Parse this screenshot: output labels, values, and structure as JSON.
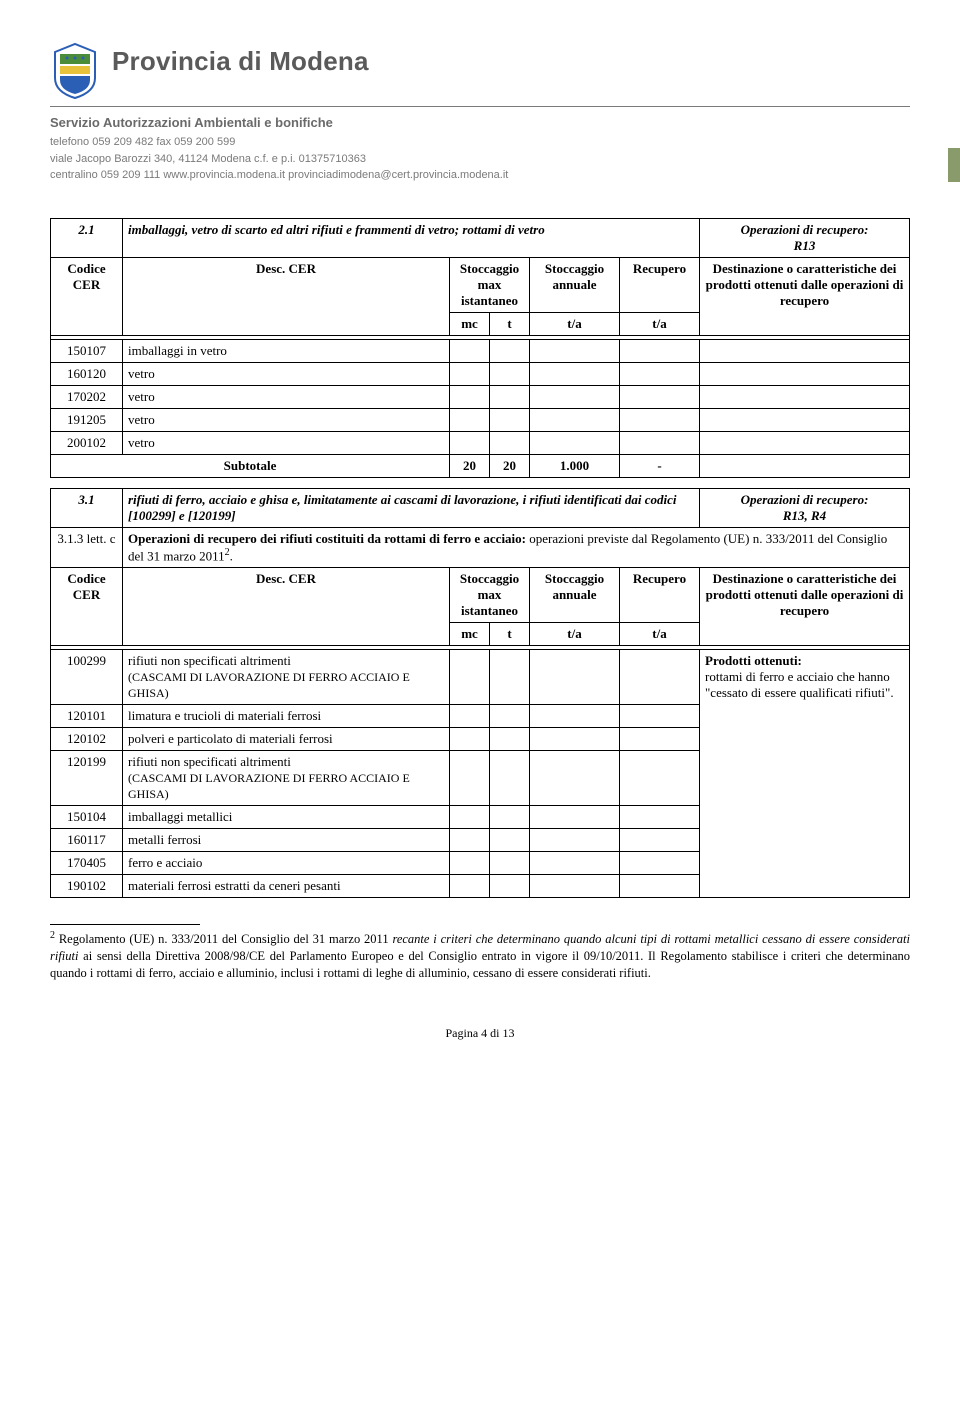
{
  "header": {
    "org_title": "Provincia di Modena",
    "service": "Servizio Autorizzazioni Ambientali e bonifiche",
    "contact_line1": "telefono 059 209 482   fax 059 200 599",
    "contact_line2": "viale Jacopo Barozzi 340, 41124 Modena  c.f. e p.i. 01375710363",
    "contact_line3": "centralino 059 209 111   www.provincia.modena.it   provinciadimodena@cert.provincia.modena.it"
  },
  "colors": {
    "header_text": "#5a5a5a",
    "header_sub": "#6a6a6a",
    "side_tab": "#8a9b6b",
    "logo_green": "#4a8c3a",
    "logo_blue": "#2b5fb5",
    "logo_yellow": "#e8c23a"
  },
  "section21": {
    "num": "2.1",
    "title": "imballaggi, vetro di scarto ed altri rifiuti e frammenti di vetro; rottami di vetro",
    "op_label": "Operazioni di recupero:",
    "op_value": "R13",
    "col_codice": "Codice CER",
    "col_desc": "Desc. CER",
    "col_stocc_max": "Stoccaggio max istantaneo",
    "col_mc": "mc",
    "col_t": "t",
    "col_stocc_ann": "Stoccaggio annuale",
    "col_ta": "t/a",
    "col_recupero": "Recupero",
    "col_ta2": "t/a",
    "col_dest": "Destinazione o caratteristiche dei prodotti ottenuti dalle operazioni di recupero",
    "rows": [
      {
        "code": "150107",
        "desc": "imballaggi in vetro"
      },
      {
        "code": "160120",
        "desc": "vetro"
      },
      {
        "code": "170202",
        "desc": "vetro"
      },
      {
        "code": "191205",
        "desc": "vetro"
      },
      {
        "code": "200102",
        "desc": "vetro"
      }
    ],
    "subtotal_label": "Subtotale",
    "subtotal_mc": "20",
    "subtotal_t": "20",
    "subtotal_ann": "1.000",
    "subtotal_rec": "-"
  },
  "section31": {
    "num": "3.1",
    "title": "rifiuti di ferro, acciaio e ghisa e, limitatamente ai cascami di lavorazione, i rifiuti identificati dai codici [100299] e [120199]",
    "op_label": "Operazioni di recupero:",
    "op_value": "R13, R4",
    "row2_num": "3.1.3 lett. c",
    "row2_text_a": "Operazioni di recupero dei rifiuti costituiti da rottami di ferro e acciaio:",
    "row2_text_b": " operazioni previste dal Regolamento (UE) n. 333/2011 del Consiglio del 31 marzo 2011",
    "row2_sup": "2",
    "row2_dot": ".",
    "col_codice": "Codice CER",
    "col_desc": "Desc. CER",
    "col_stocc_max": "Stoccaggio max istantaneo",
    "col_mc": "mc",
    "col_t": "t",
    "col_stocc_ann": "Stoccaggio annuale",
    "col_ta": "t/a",
    "col_recupero": "Recupero",
    "col_ta2": "t/a",
    "col_dest": "Destinazione o caratteristiche dei prodotti ottenuti dalle operazioni di recupero",
    "rows": [
      {
        "code": "100299",
        "desc": "rifiuti non specificati altrimenti",
        "sub": "(CASCAMI DI LAVORAZIONE DI FERRO ACCIAIO E GHISA)"
      },
      {
        "code": "120101",
        "desc": "limatura e trucioli di materiali ferrosi"
      },
      {
        "code": "120102",
        "desc": "polveri e particolato di materiali ferrosi"
      },
      {
        "code": "120199",
        "desc": "rifiuti non specificati altrimenti",
        "sub": "(CASCAMI DI LAVORAZIONE DI FERRO ACCIAIO E GHISA)"
      },
      {
        "code": "150104",
        "desc": "imballaggi metallici"
      },
      {
        "code": "160117",
        "desc": "metalli ferrosi"
      },
      {
        "code": "170405",
        "desc": "ferro e acciaio"
      },
      {
        "code": "190102",
        "desc": "materiali ferrosi estratti da ceneri pesanti"
      }
    ],
    "dest_bold": "Prodotti ottenuti:",
    "dest_text": "rottami di ferro e acciaio che hanno \"cessato di essere qualificati rifiuti\"."
  },
  "footnote": {
    "num": "2",
    "text_a": " Regolamento (UE) n. 333/2011 del Consiglio del 31 marzo 2011 ",
    "text_italic": "recante i criteri che determinano quando alcuni tipi di rottami metallici cessano di essere considerati rifiuti",
    "text_b": " ai sensi della Direttiva 2008/98/CE del Parlamento Europeo e del Consiglio entrato in vigore il 09/10/2011. Il Regolamento stabilisce i criteri che determinano quando i rottami di ferro, acciaio e alluminio, inclusi i rottami di leghe di alluminio, cessano di essere considerati rifiuti."
  },
  "footer": {
    "page": "Pagina 4 di 13"
  }
}
